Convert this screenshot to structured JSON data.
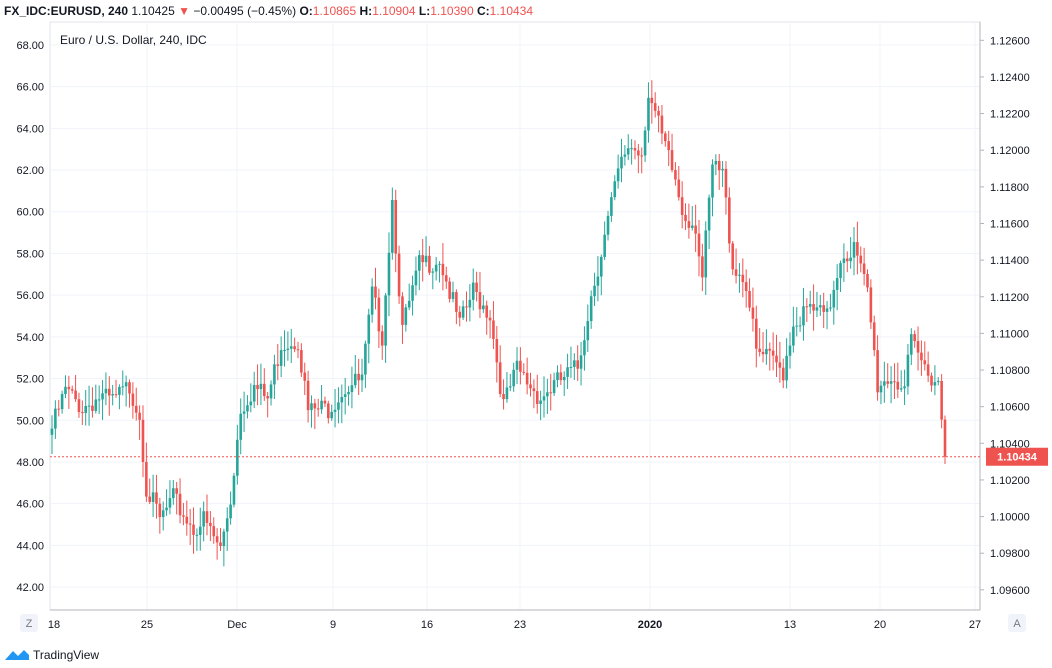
{
  "header": {
    "symbol": "FX_IDC:EURUSD, 240",
    "last": "1.10425",
    "arrow": "▼",
    "change": "−0.00495 (−0.45%)",
    "o_label": "O:",
    "o_value": "1.10865",
    "h_label": "H:",
    "h_value": "1.10904",
    "l_label": "L:",
    "l_value": "1.10390",
    "c_label": "C:",
    "c_value": "1.10434"
  },
  "chart_data": {
    "type": "candlestick",
    "legend_title": "Euro / U.S. Dollar, 240, IDC",
    "left_axis": {
      "range": [
        40.9,
        69.1
      ],
      "ticks": [
        "68.00",
        "66.00",
        "64.00",
        "62.00",
        "60.00",
        "58.00",
        "56.00",
        "54.00",
        "52.00",
        "50.00",
        "48.00",
        "46.00",
        "44.00",
        "42.00"
      ]
    },
    "right_axis": {
      "range": [
        1.0949,
        1.127
      ],
      "ticks": [
        "1.12600",
        "1.12400",
        "1.12200",
        "1.12000",
        "1.11800",
        "1.11600",
        "1.11400",
        "1.11200",
        "1.11000",
        "1.10800",
        "1.10600",
        "1.10400",
        "1.10200",
        "1.10000",
        "1.09800",
        "1.09600"
      ]
    },
    "x_ticks": [
      {
        "label": "18",
        "bold": false
      },
      {
        "label": "25",
        "bold": false
      },
      {
        "label": "Dec",
        "bold": false
      },
      {
        "label": "9",
        "bold": false
      },
      {
        "label": "16",
        "bold": false
      },
      {
        "label": "23",
        "bold": false
      },
      {
        "label": "2020",
        "bold": true
      },
      {
        "label": "13",
        "bold": false
      },
      {
        "label": "20",
        "bold": false
      },
      {
        "label": "27",
        "bold": false
      }
    ],
    "last_price": "1.10434",
    "last_price_value": 48.25,
    "grid": true,
    "up_color": "#26a69a",
    "down_color": "#ef5350",
    "anchors": [
      [
        0,
        49.6
      ],
      [
        4,
        51.4
      ],
      [
        9,
        50.6
      ],
      [
        14,
        51.1
      ],
      [
        18,
        50.9
      ],
      [
        23,
        51.6
      ],
      [
        26,
        50.3
      ],
      [
        28,
        46.8
      ],
      [
        32,
        45.2
      ],
      [
        36,
        46.2
      ],
      [
        42,
        44.8
      ],
      [
        45,
        45.2
      ],
      [
        50,
        43.8
      ],
      [
        53,
        46.2
      ],
      [
        56,
        50.6
      ],
      [
        60,
        51.6
      ],
      [
        64,
        51.0
      ],
      [
        68,
        53.7
      ],
      [
        73,
        53.9
      ],
      [
        76,
        50.4
      ],
      [
        82,
        50.6
      ],
      [
        87,
        51.6
      ],
      [
        92,
        51.9
      ],
      [
        95,
        56.0
      ],
      [
        98,
        54.1
      ],
      [
        101,
        60.6
      ],
      [
        104,
        54.3
      ],
      [
        109,
        57.4
      ],
      [
        115,
        57.8
      ],
      [
        121,
        54.5
      ],
      [
        125,
        56.2
      ],
      [
        130,
        55.1
      ],
      [
        134,
        50.7
      ],
      [
        138,
        52.4
      ],
      [
        145,
        51.1
      ],
      [
        150,
        51.8
      ],
      [
        156,
        52.5
      ],
      [
        160,
        56.0
      ],
      [
        164,
        58.8
      ],
      [
        168,
        61.8
      ],
      [
        171,
        63.2
      ],
      [
        175,
        62.9
      ],
      [
        177,
        65.8
      ],
      [
        181,
        63.5
      ],
      [
        185,
        61.5
      ],
      [
        187,
        60.0
      ],
      [
        191,
        59.4
      ],
      [
        193,
        56.8
      ],
      [
        196,
        62.1
      ],
      [
        199,
        61.8
      ],
      [
        202,
        57.5
      ],
      [
        206,
        56.6
      ],
      [
        209,
        53.2
      ],
      [
        213,
        52.9
      ],
      [
        217,
        52.4
      ],
      [
        220,
        54.7
      ],
      [
        225,
        55.3
      ],
      [
        230,
        54.9
      ],
      [
        234,
        57.9
      ],
      [
        238,
        58.2
      ],
      [
        242,
        56.1
      ],
      [
        245,
        51.7
      ],
      [
        249,
        52.1
      ],
      [
        253,
        51.6
      ],
      [
        255,
        53.6
      ],
      [
        259,
        52.5
      ],
      [
        263,
        51.9
      ],
      [
        265,
        48.25
      ]
    ]
  }
}
